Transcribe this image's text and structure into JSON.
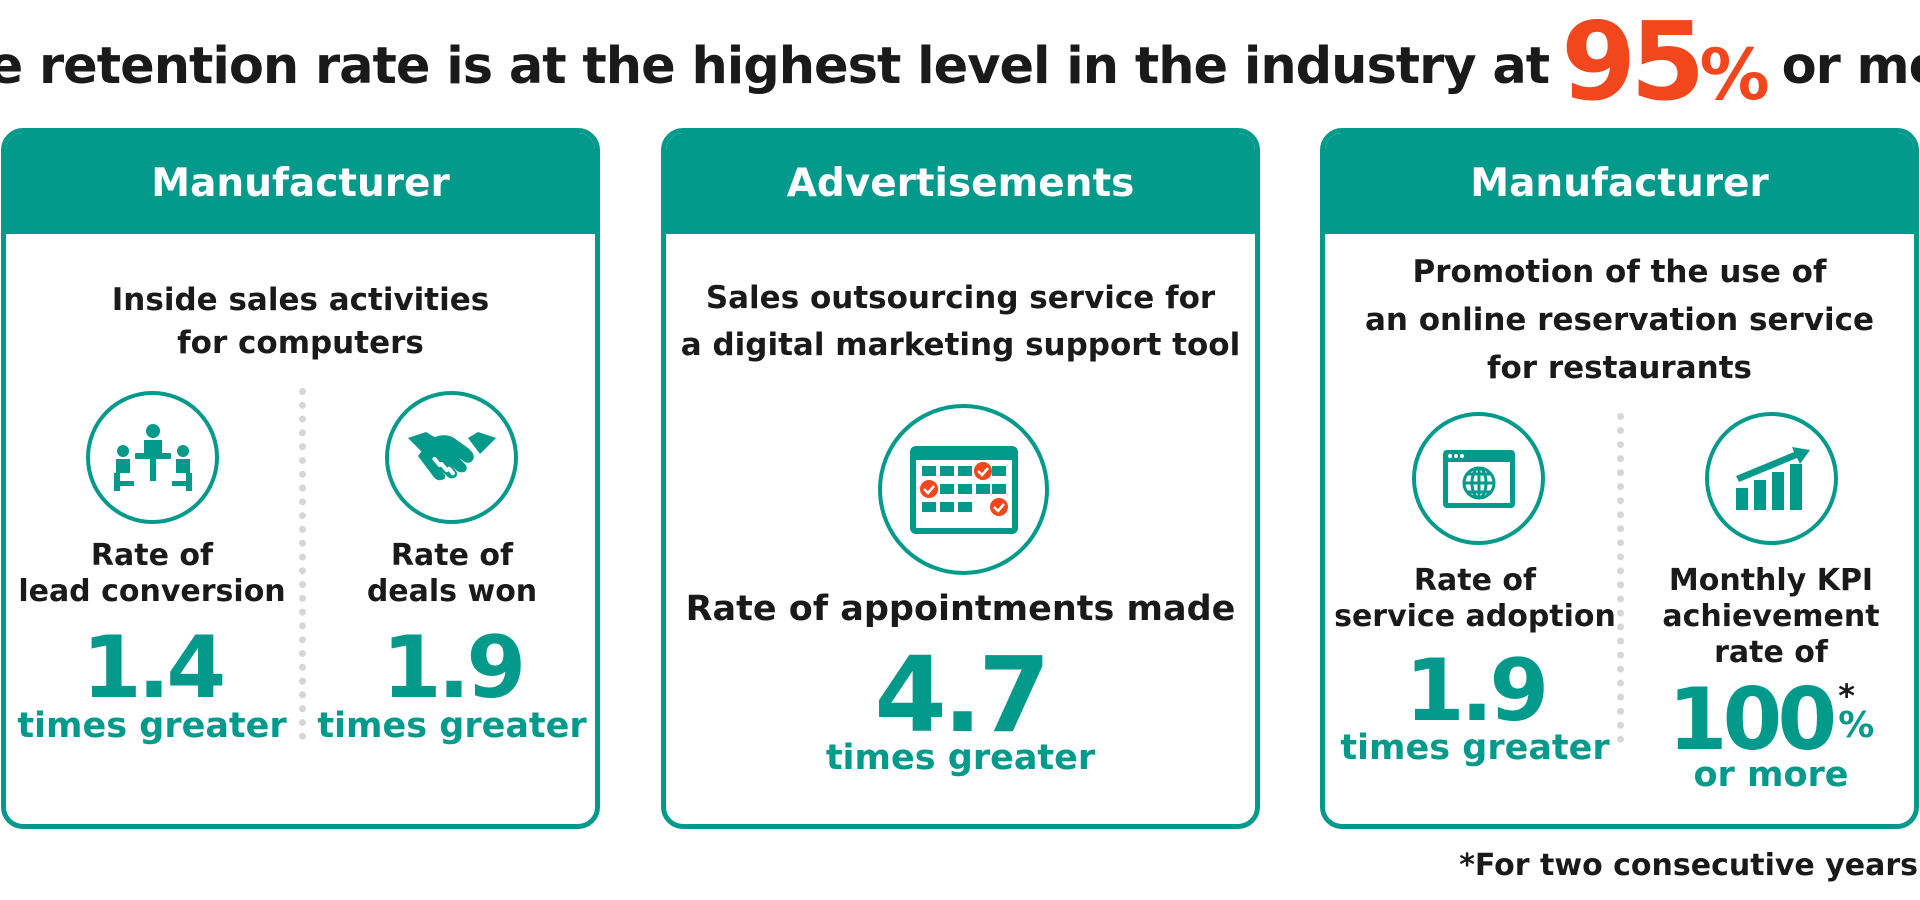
{
  "headline": {
    "prefix": "The retention rate is at the highest level in the industry at",
    "value": "95",
    "percent": "%",
    "suffix": "or more"
  },
  "cards": [
    {
      "category": "Manufacturer",
      "description_line1": "Inside sales activities",
      "description_line2": "for computers",
      "metrics": [
        {
          "icon": "meeting-icon",
          "label_line1": "Rate of",
          "label_line2": "lead conversion",
          "value": "1.4",
          "unit": "times greater"
        },
        {
          "icon": "handshake-icon",
          "label_line1": "Rate of",
          "label_line2": "deals won",
          "value": "1.9",
          "unit": "times greater"
        }
      ]
    },
    {
      "category": "Advertisements",
      "description_line1": "Sales outsourcing service for",
      "description_line2": "a digital marketing support tool",
      "metrics": [
        {
          "icon": "calendar-check-icon",
          "label": "Rate of appointments made",
          "value": "4.7",
          "unit": "times greater"
        }
      ]
    },
    {
      "category": "Manufacturer",
      "description_line1": "Promotion of the use of",
      "description_line2": "an online reservation service",
      "description_line3": "for restaurants",
      "metrics": [
        {
          "icon": "web-browser-icon",
          "label_line1": "Rate of",
          "label_line2": "service adoption",
          "value": "1.9",
          "unit": "times greater"
        },
        {
          "icon": "growth-chart-icon",
          "label_line1": "Monthly KPI",
          "label_line2": "achievement",
          "label_line3": "rate of",
          "value": "100",
          "asterisk": "*",
          "percent": "%",
          "unit": "or more"
        }
      ]
    }
  ],
  "footnote": "*For two consecutive years",
  "colors": {
    "teal": "#039a8c",
    "accent": "#f2461c",
    "text": "#1a1a1a"
  }
}
